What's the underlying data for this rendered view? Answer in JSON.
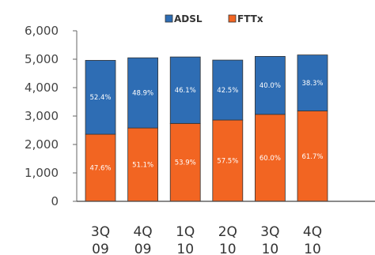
{
  "chart_data": {
    "type": "bar",
    "stacked": true,
    "categories": [
      [
        "3Q",
        "09"
      ],
      [
        "4Q",
        "09"
      ],
      [
        "1Q",
        "10"
      ],
      [
        "2Q",
        "10"
      ],
      [
        "3Q",
        "10"
      ],
      [
        "4Q",
        "10"
      ]
    ],
    "series": [
      {
        "name": "FTTx",
        "color": "#F26522",
        "values": [
          2360,
          2580,
          2740,
          2860,
          3060,
          3180
        ],
        "labels": [
          "47.6%",
          "51.1%",
          "53.9%",
          "57.5%",
          "60.0%",
          "61.7%"
        ]
      },
      {
        "name": "ADSL",
        "color": "#2E6DB4",
        "values": [
          2600,
          2470,
          2340,
          2110,
          2040,
          1970
        ],
        "labels": [
          "52.4%",
          "48.9%",
          "46.1%",
          "42.5%",
          "40.0%",
          "38.3%"
        ]
      }
    ],
    "legend_order": [
      "ADSL",
      "FTTx"
    ],
    "legend_placement": "top",
    "ylim": [
      0,
      6000
    ],
    "yticks": [
      "0",
      "1,000",
      "2,000",
      "3,000",
      "4,000",
      "5,000",
      "6,000"
    ],
    "ytick_values": [
      0,
      1000,
      2000,
      3000,
      4000,
      5000,
      6000
    ],
    "grid": false,
    "title": "",
    "xlabel": "",
    "ylabel": ""
  }
}
